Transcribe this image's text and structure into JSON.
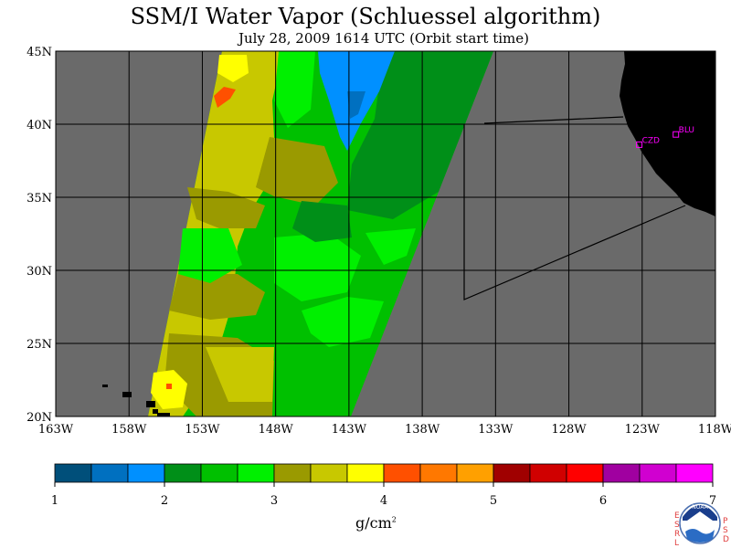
{
  "title": "SSM/I Water Vapor (Schluessel algorithm)",
  "subtitle": "July 28, 2009  1614 UTC  (Orbit start time)",
  "lat_labels": [
    "45N",
    "40N",
    "35N",
    "30N",
    "25N",
    "20N"
  ],
  "lon_labels": [
    "163W",
    "158W",
    "153W",
    "148W",
    "143W",
    "138W",
    "133W",
    "128W",
    "123W",
    "118W"
  ],
  "stations": [
    {
      "name": "BLU",
      "lon": -120.7,
      "lat": 39.3
    },
    {
      "name": "CZD",
      "lon": -123.2,
      "lat": 38.6
    }
  ],
  "colorbar": {
    "ticks": [
      "1",
      "2",
      "3",
      "4",
      "5",
      "6",
      "7"
    ],
    "unit": "g/cm",
    "unit_sup": "2",
    "colors": [
      "#004f7a",
      "#0070c0",
      "#0090ff",
      "#008f18",
      "#00c000",
      "#00f000",
      "#9a9a00",
      "#c8c800",
      "#ffff00",
      "#ff5000",
      "#ff7800",
      "#ffa000",
      "#a00000",
      "#d00000",
      "#ff0000",
      "#a000a0",
      "#d000d0",
      "#ff00ff"
    ]
  },
  "colors": {
    "ocean": "#6a6a6a",
    "land": "#000000",
    "station": "#ff00ff",
    "grid": "#000000"
  },
  "logo": {
    "left_letters": [
      "E",
      "S",
      "R",
      "L"
    ],
    "right_letters": [
      "P",
      "S",
      "D"
    ],
    "center_text": "NOAA"
  }
}
